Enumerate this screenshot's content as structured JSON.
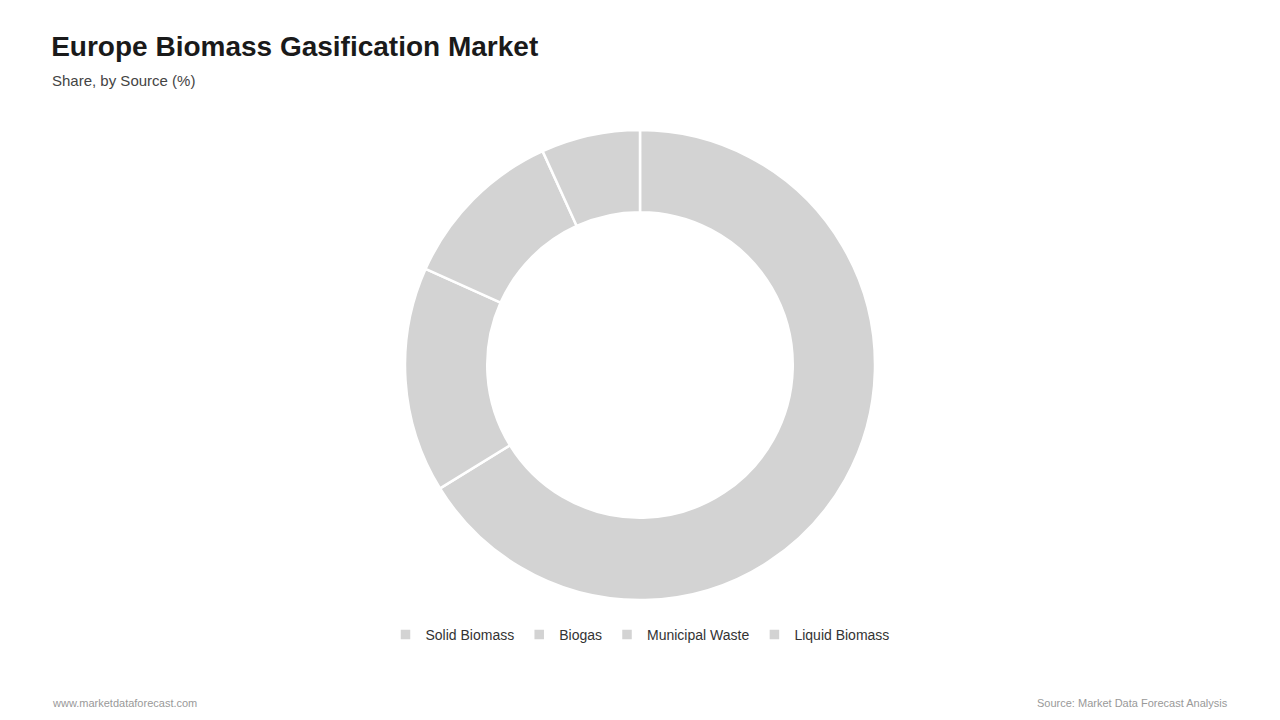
{
  "chart_data": {
    "type": "donut",
    "title": "Europe Biomass Gasification Market",
    "subtitle": "Share, by Source (%)",
    "categories": [
      "Solid Biomass",
      "Biogas",
      "Municipal Waste",
      "Liquid Biomass"
    ],
    "values": [
      66.2,
      15.5,
      11.5,
      6.8
    ],
    "color": "#d3d3d3",
    "legend": "bottom",
    "data_labels": false,
    "annotations": [
      "www.marketdataforecast.com",
      "Source: Market Data Forecast Analysis"
    ]
  }
}
